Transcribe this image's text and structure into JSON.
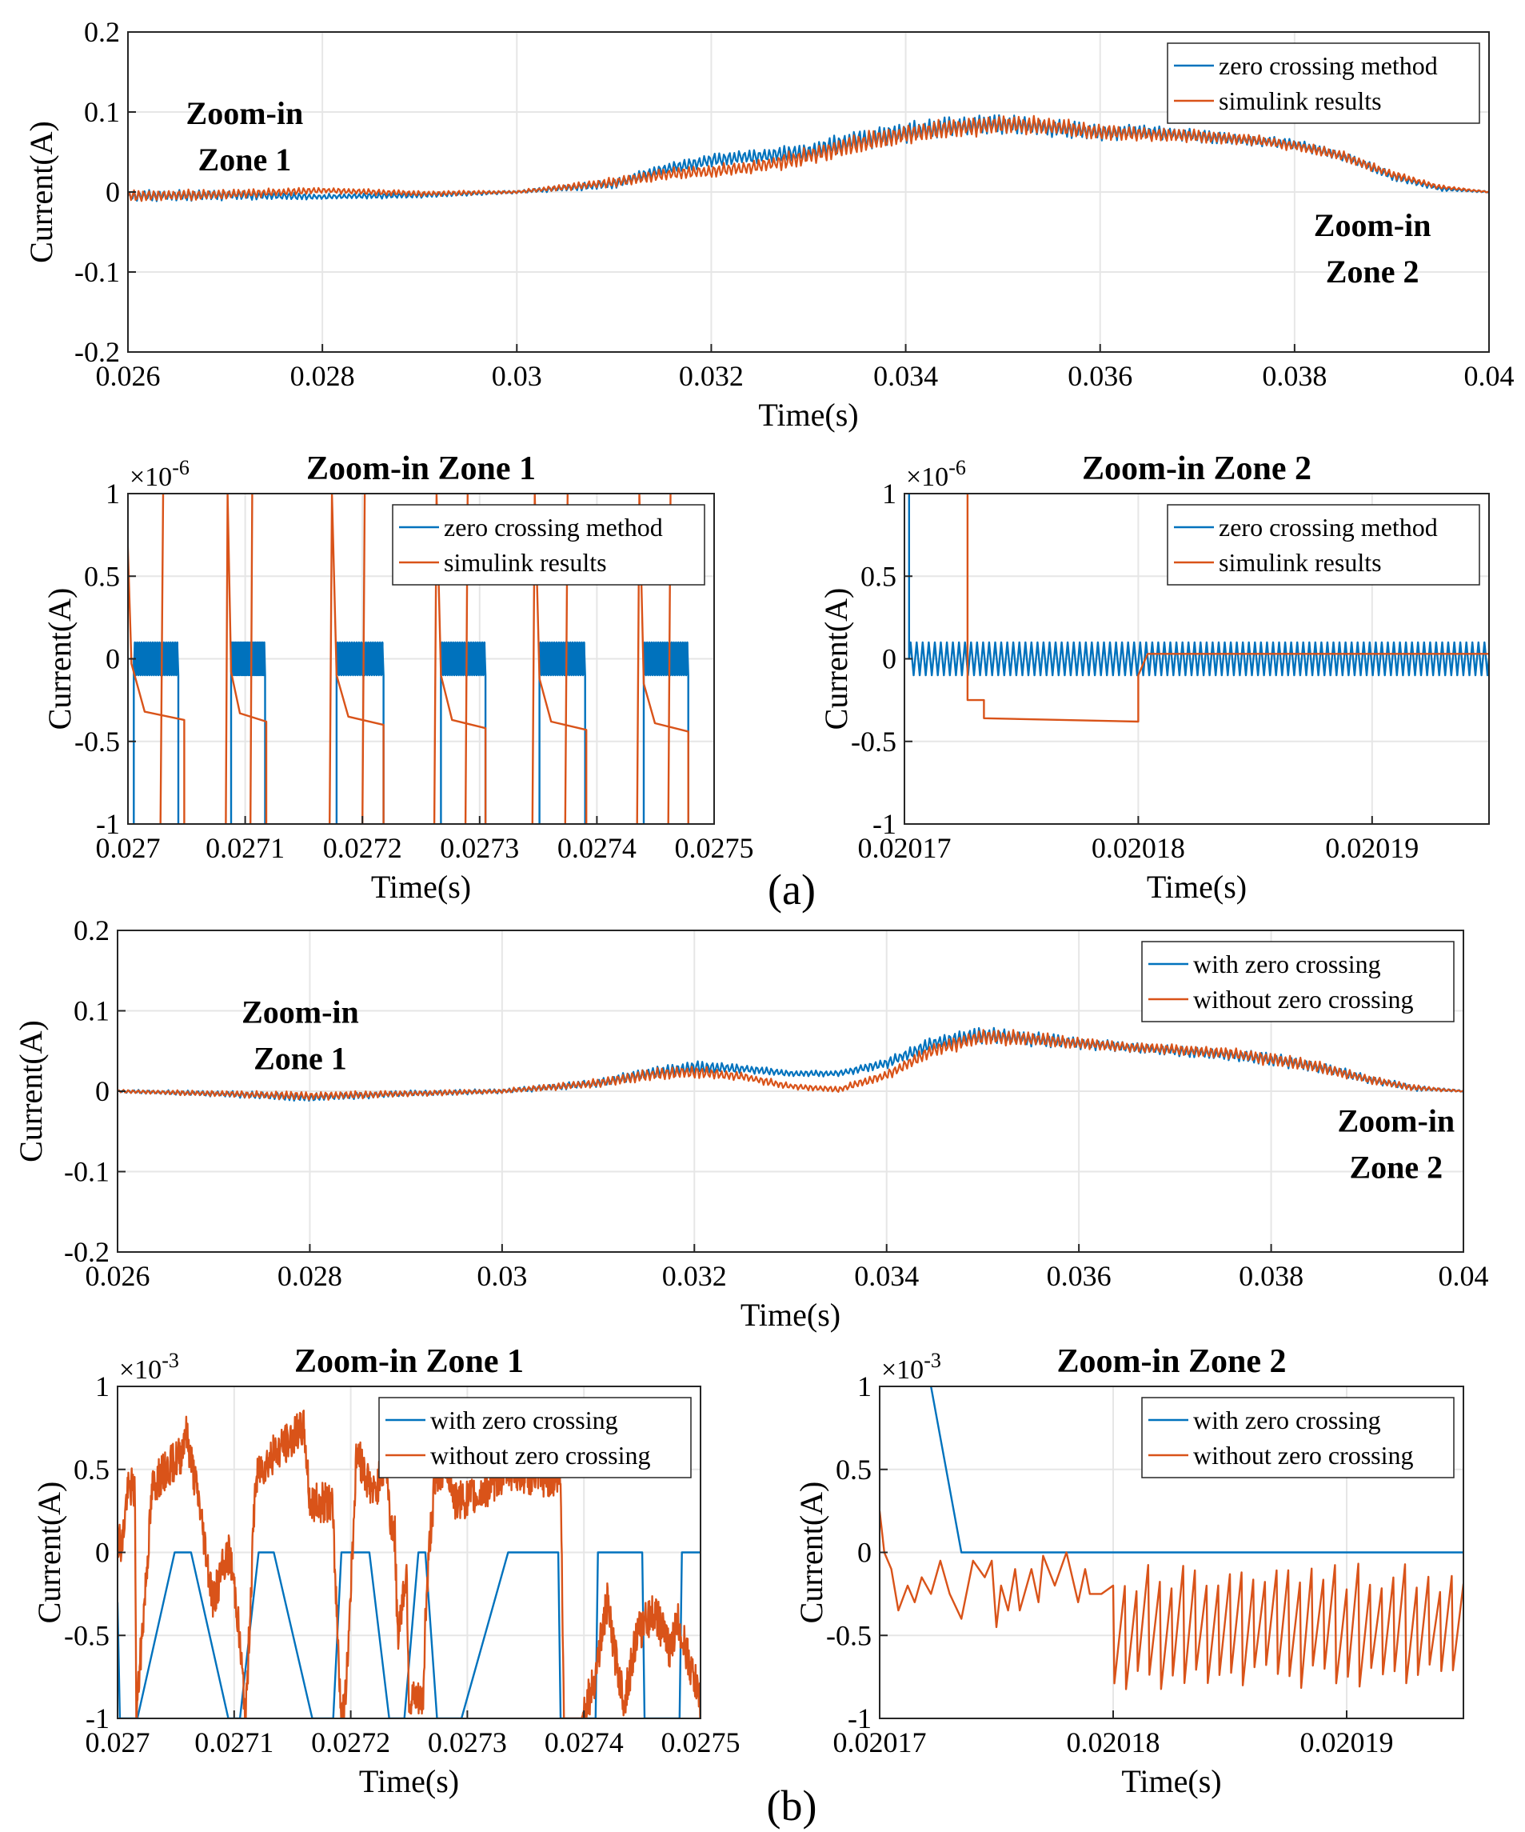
{
  "figure": {
    "caption_a": "(a)",
    "caption_b": "(b)"
  },
  "colors": {
    "blue": "#0072BD",
    "orange": "#D95319",
    "grid": "#e6e6e6"
  },
  "chart_data": [
    {
      "id": "a_main",
      "type": "line",
      "title": "",
      "xlabel": "Time(s)",
      "ylabel": "Current(A)",
      "xlim": [
        0.026,
        0.04
      ],
      "ylim": [
        -0.2,
        0.2
      ],
      "xticks": [
        0.026,
        0.028,
        0.03,
        0.032,
        0.034,
        0.036,
        0.038,
        0.04
      ],
      "xtick_labels": [
        "0.026",
        "0.028",
        "0.03",
        "0.032",
        "0.034",
        "0.036",
        "0.038",
        "0.04"
      ],
      "yticks": [
        -0.2,
        -0.1,
        0,
        0.1,
        0.2
      ],
      "ytick_labels": [
        "-0.2",
        "-0.1",
        "0",
        "0.1",
        "0.2"
      ],
      "grid": true,
      "legend_position": "top-right",
      "annotations": [
        {
          "lines": [
            "Zoom-in",
            "Zone 1"
          ],
          "x": 0.0272,
          "y": 0.085
        },
        {
          "lines": [
            "Zoom-in",
            "Zone 2"
          ],
          "x": 0.0388,
          "y": -0.055
        }
      ],
      "series": [
        {
          "name": "zero crossing method",
          "color": "#0072BD",
          "x": [
            0.026,
            0.027,
            0.028,
            0.029,
            0.03,
            0.031,
            0.0315,
            0.032,
            0.0325,
            0.033,
            0.0335,
            0.034,
            0.0345,
            0.035,
            0.0355,
            0.036,
            0.0365,
            0.037,
            0.0375,
            0.038,
            0.0385,
            0.039,
            0.0395,
            0.04
          ],
          "y": [
            -0.005,
            -0.004,
            -0.006,
            -0.004,
            0.0,
            0.01,
            0.028,
            0.04,
            0.045,
            0.05,
            0.065,
            0.075,
            0.082,
            0.085,
            0.08,
            0.075,
            0.075,
            0.07,
            0.065,
            0.06,
            0.045,
            0.02,
            0.004,
            0.0
          ],
          "ripple": [
            0.008,
            0.007,
            0.004,
            0.004,
            0.002,
            0.007,
            0.008,
            0.009,
            0.01,
            0.012,
            0.014,
            0.014,
            0.014,
            0.013,
            0.012,
            0.011,
            0.01,
            0.009,
            0.008,
            0.007,
            0.007,
            0.006,
            0.003,
            0.001
          ]
        },
        {
          "name": "simulink results",
          "color": "#D95319",
          "x": [
            0.026,
            0.027,
            0.028,
            0.029,
            0.03,
            0.031,
            0.0315,
            0.032,
            0.0325,
            0.033,
            0.0335,
            0.034,
            0.0345,
            0.035,
            0.0355,
            0.036,
            0.0365,
            0.037,
            0.0375,
            0.038,
            0.0385,
            0.039,
            0.0395,
            0.04
          ],
          "y": [
            -0.005,
            -0.003,
            0.002,
            -0.002,
            0.0,
            0.012,
            0.022,
            0.026,
            0.032,
            0.045,
            0.06,
            0.072,
            0.08,
            0.085,
            0.082,
            0.075,
            0.072,
            0.07,
            0.066,
            0.058,
            0.045,
            0.022,
            0.006,
            0.0
          ],
          "ripple": [
            0.008,
            0.007,
            0.004,
            0.004,
            0.002,
            0.007,
            0.008,
            0.009,
            0.01,
            0.012,
            0.014,
            0.014,
            0.014,
            0.013,
            0.012,
            0.011,
            0.01,
            0.009,
            0.008,
            0.007,
            0.007,
            0.006,
            0.003,
            0.001
          ]
        }
      ]
    },
    {
      "id": "a_z1",
      "type": "line",
      "title": "Zoom-in Zone 1",
      "xlabel": "Time(s)",
      "ylabel": "Current(A)",
      "y_multiplier": "×10",
      "y_exponent": "-6",
      "xlim": [
        0.027,
        0.0275
      ],
      "ylim": [
        -1,
        1
      ],
      "xticks": [
        0.027,
        0.0271,
        0.0272,
        0.0273,
        0.0274,
        0.0275
      ],
      "xtick_labels": [
        "0.027",
        "0.0271",
        "0.0272",
        "0.0273",
        "0.0274",
        "0.0275"
      ],
      "yticks": [
        -1,
        -0.5,
        0,
        0.5,
        1
      ],
      "ytick_labels": [
        "-1",
        "-0.5",
        "0",
        "0.5",
        "1"
      ],
      "grid": true,
      "legend_position": "top-right",
      "series": [
        {
          "name": "zero crossing method",
          "color": "#0072BD",
          "bursts": [
            [
              0.027005,
              0.027043
            ],
            [
              0.027088,
              0.027117
            ],
            [
              0.027178,
              0.027218
            ],
            [
              0.027267,
              0.027305
            ],
            [
              0.027351,
              0.02739
            ],
            [
              0.02744,
              0.027478
            ]
          ],
          "burst_amplitude": 0.1
        },
        {
          "name": "simulink results",
          "color": "#D95319",
          "events": [
            {
              "x": 0.027003,
              "width": 4.5e-05,
              "peak": 1.0,
              "top": -0.03,
              "tail": -0.37
            },
            {
              "x": 0.027088,
              "width": 3e-05,
              "peak": 1.0,
              "top": -0.08,
              "tail": -0.38
            },
            {
              "x": 0.027178,
              "width": 4e-05,
              "peak": 1.0,
              "top": -0.1,
              "tail": -0.4
            },
            {
              "x": 0.027267,
              "width": 3.8e-05,
              "peak": 1.0,
              "top": -0.1,
              "tail": -0.42
            },
            {
              "x": 0.027351,
              "width": 4e-05,
              "peak": 1.0,
              "top": -0.12,
              "tail": -0.43
            },
            {
              "x": 0.02744,
              "width": 3.8e-05,
              "peak": 1.0,
              "top": -0.15,
              "tail": -0.44
            }
          ]
        }
      ]
    },
    {
      "id": "a_z2",
      "type": "line",
      "title": "Zoom-in Zone 2",
      "xlabel": "Time(s)",
      "ylabel": "Current(A)",
      "y_multiplier": "×10",
      "y_exponent": "-6",
      "xlim": [
        0.02017,
        0.020195
      ],
      "ylim": [
        -1,
        1
      ],
      "xticks": [
        0.02017,
        0.02018,
        0.02019
      ],
      "xtick_labels": [
        "0.02017",
        "0.02018",
        "0.02019"
      ],
      "yticks": [
        -1,
        -0.5,
        0,
        0.5,
        1
      ],
      "ytick_labels": [
        "-1",
        "-0.5",
        "0",
        "0.5",
        "1"
      ],
      "grid": true,
      "legend_position": "top-right",
      "series": [
        {
          "name": "zero crossing method",
          "color": "#0072BD",
          "start": 0.0201702,
          "amplitude": 0.1,
          "cycles": 48
        },
        {
          "name": "simulink results",
          "color": "#D95319",
          "x": [
            0.0201727,
            0.0201727,
            0.0201734,
            0.0201734,
            0.02018,
            0.02018,
            0.0201804,
            0.020195
          ],
          "y": [
            1.0,
            -0.25,
            -0.25,
            -0.36,
            -0.38,
            -0.1,
            0.03,
            0.03
          ]
        }
      ]
    },
    {
      "id": "b_main",
      "type": "line",
      "title": "",
      "xlabel": "Time(s)",
      "ylabel": "Current(A)",
      "xlim": [
        0.026,
        0.04
      ],
      "ylim": [
        -0.2,
        0.2
      ],
      "xticks": [
        0.026,
        0.028,
        0.03,
        0.032,
        0.034,
        0.036,
        0.038,
        0.04
      ],
      "xtick_labels": [
        "0.026",
        "0.028",
        "0.03",
        "0.032",
        "0.034",
        "0.036",
        "0.038",
        "0.04"
      ],
      "yticks": [
        -0.2,
        -0.1,
        0,
        0.1,
        0.2
      ],
      "ytick_labels": [
        "-0.2",
        "-0.1",
        "0",
        "0.1",
        "0.2"
      ],
      "grid": true,
      "legend_position": "top-right",
      "annotations": [
        {
          "lines": [
            "Zoom-in",
            "Zone 1"
          ],
          "x": 0.0279,
          "y": 0.085
        },
        {
          "lines": [
            "Zoom-in",
            "Zone 2"
          ],
          "x": 0.0393,
          "y": -0.05
        }
      ],
      "series": [
        {
          "name": "with zero crossing",
          "color": "#0072BD",
          "x": [
            0.026,
            0.027,
            0.028,
            0.029,
            0.03,
            0.031,
            0.0315,
            0.032,
            0.0325,
            0.033,
            0.0335,
            0.034,
            0.0345,
            0.035,
            0.0355,
            0.036,
            0.0365,
            0.037,
            0.0375,
            0.038,
            0.0385,
            0.039,
            0.0395,
            0.04
          ],
          "y": [
            0.0,
            -0.003,
            -0.008,
            -0.003,
            0.0,
            0.01,
            0.022,
            0.03,
            0.028,
            0.022,
            0.022,
            0.035,
            0.06,
            0.07,
            0.065,
            0.06,
            0.055,
            0.05,
            0.046,
            0.04,
            0.03,
            0.015,
            0.004,
            0.0
          ],
          "ripple": [
            0.002,
            0.004,
            0.006,
            0.004,
            0.003,
            0.006,
            0.008,
            0.009,
            0.006,
            0.004,
            0.004,
            0.007,
            0.01,
            0.011,
            0.01,
            0.008,
            0.007,
            0.007,
            0.008,
            0.009,
            0.008,
            0.006,
            0.004,
            0.001
          ]
        },
        {
          "name": "without zero crossing",
          "color": "#D95319",
          "x": [
            0.026,
            0.027,
            0.028,
            0.029,
            0.03,
            0.031,
            0.0315,
            0.032,
            0.0325,
            0.033,
            0.0335,
            0.034,
            0.0345,
            0.035,
            0.0355,
            0.036,
            0.0365,
            0.037,
            0.0375,
            0.038,
            0.0385,
            0.039,
            0.0395,
            0.04
          ],
          "y": [
            0.0,
            -0.003,
            -0.006,
            -0.003,
            0.0,
            0.01,
            0.02,
            0.024,
            0.018,
            0.006,
            0.002,
            0.02,
            0.052,
            0.068,
            0.065,
            0.06,
            0.055,
            0.052,
            0.048,
            0.04,
            0.03,
            0.015,
            0.004,
            0.0
          ],
          "ripple": [
            0.002,
            0.004,
            0.006,
            0.004,
            0.003,
            0.006,
            0.008,
            0.009,
            0.006,
            0.004,
            0.004,
            0.007,
            0.01,
            0.011,
            0.01,
            0.008,
            0.007,
            0.007,
            0.008,
            0.009,
            0.008,
            0.006,
            0.004,
            0.001
          ]
        }
      ]
    },
    {
      "id": "b_z1",
      "type": "line",
      "title": "Zoom-in Zone 1",
      "xlabel": "Time(s)",
      "ylabel": "Current(A)",
      "y_multiplier": "×10",
      "y_exponent": "-3",
      "xlim": [
        0.027,
        0.0275
      ],
      "ylim": [
        -1,
        1
      ],
      "xticks": [
        0.027,
        0.0271,
        0.0272,
        0.0273,
        0.0274,
        0.0275
      ],
      "xtick_labels": [
        "0.027",
        "0.0271",
        "0.0272",
        "0.0273",
        "0.0274",
        "0.0275"
      ],
      "yticks": [
        -1,
        -0.5,
        0,
        0.5,
        1
      ],
      "ytick_labels": [
        "-1",
        "-0.5",
        "0",
        "0.5",
        "1"
      ],
      "grid": true,
      "legend_position": "top-right",
      "series": [
        {
          "name": "with zero crossing",
          "color": "#0072BD",
          "x": [
            0.027,
            0.027002,
            0.027017,
            0.027049,
            0.027063,
            0.027095,
            0.027105,
            0.027121,
            0.027134,
            0.027167,
            0.027185,
            0.027192,
            0.027216,
            0.027233,
            0.027246,
            0.027258,
            0.027264,
            0.027274,
            0.027295,
            0.027335,
            0.027378,
            0.02738,
            0.02741,
            0.027412,
            0.02745,
            0.027452,
            0.027482,
            0.027484,
            0.0275
          ],
          "y": [
            -0.3,
            -1.0,
            -1.0,
            0.0,
            0.0,
            -1.0,
            -1.0,
            0.0,
            0.0,
            -1.0,
            -1.0,
            0.0,
            0.0,
            -1.0,
            -1.0,
            0.0,
            0.0,
            -1.0,
            -1.0,
            0.0,
            0.0,
            -1.0,
            -1.0,
            0.0,
            0.0,
            -1.0,
            -1.0,
            0.0,
            0.0
          ]
        },
        {
          "name": "without zero crossing",
          "color": "#D95319",
          "x": [
            0.027,
            0.027004,
            0.027008,
            0.027012,
            0.027015,
            0.027016,
            0.02703,
            0.027055,
            0.027058,
            0.02707,
            0.027075,
            0.027082,
            0.02709,
            0.027096,
            0.027102,
            0.02711,
            0.027118,
            0.027122,
            0.027135,
            0.02716,
            0.027165,
            0.027184,
            0.027192,
            0.027196,
            0.027205,
            0.02722,
            0.02723,
            0.027234,
            0.027238,
            0.02724,
            0.027248,
            0.02725,
            0.027262,
            0.027264,
            0.027268,
            0.027272,
            0.027275,
            0.027282,
            0.02729,
            0.02731,
            0.027335,
            0.02736,
            0.02738,
            0.027383,
            0.027386,
            0.027388,
            0.02739,
            0.027392,
            0.027398,
            0.027408,
            0.027415,
            0.02742,
            0.027426,
            0.027435,
            0.027445,
            0.02746,
            0.027475,
            0.02748,
            0.0275
          ],
          "y": [
            0.1,
            0.05,
            0.35,
            0.4,
            0.35,
            -1.0,
            0.4,
            0.6,
            0.75,
            0.3,
            0.05,
            -0.3,
            -0.1,
            0.0,
            -0.3,
            -1.0,
            0.4,
            0.5,
            0.6,
            0.75,
            0.3,
            0.3,
            -1.0,
            -0.85,
            0.6,
            0.35,
            0.55,
            0.2,
            0.1,
            -0.5,
            -0.1,
            -0.9,
            -0.9,
            -0.4,
            0.1,
            0.4,
            0.45,
            0.55,
            0.3,
            0.35,
            0.5,
            0.45,
            0.45,
            -1.0,
            -1.0,
            -1.0,
            -1.0,
            -1.0,
            -1.0,
            -0.8,
            -0.5,
            -0.3,
            -0.6,
            -0.9,
            -0.5,
            -0.35,
            -0.6,
            -0.4,
            -0.9
          ],
          "ripple": 0.12
        }
      ]
    },
    {
      "id": "b_z2",
      "type": "line",
      "title": "Zoom-in Zone 2",
      "xlabel": "Time(s)",
      "ylabel": "Current(A)",
      "y_multiplier": "×10",
      "y_exponent": "-3",
      "xlim": [
        0.02017,
        0.020195
      ],
      "ylim": [
        -1,
        1
      ],
      "xticks": [
        0.02017,
        0.02018,
        0.02019
      ],
      "xtick_labels": [
        "0.02017",
        "0.02018",
        "0.02019"
      ],
      "yticks": [
        -1,
        -0.5,
        0,
        0.5,
        1
      ],
      "ytick_labels": [
        "-1",
        "-0.5",
        "0",
        "0.5",
        "1"
      ],
      "grid": true,
      "legend_position": "top-right",
      "series": [
        {
          "name": "with zero crossing",
          "color": "#0072BD",
          "x": [
            0.0201722,
            0.0201735,
            0.020195
          ],
          "y": [
            1.0,
            0.0,
            0.0
          ]
        },
        {
          "name": "without zero crossing",
          "color": "#D95319",
          "x": [
            0.02017,
            0.0201702,
            0.0201705,
            0.0201708,
            0.0201712,
            0.0201715,
            0.0201718,
            0.0201722,
            0.0201726,
            0.020173,
            0.0201735,
            0.020174,
            0.0201745,
            0.0201748,
            0.020175,
            0.0201752,
            0.0201755,
            0.0201758,
            0.020176,
            0.0201765,
            0.0201768,
            0.020177,
            0.0201775,
            0.020178,
            0.0201785,
            0.0201788,
            0.020179,
            0.0201795,
            0.02018
          ],
          "y": [
            0.25,
            0.0,
            -0.1,
            -0.35,
            -0.2,
            -0.3,
            -0.15,
            -0.25,
            -0.05,
            -0.25,
            -0.4,
            -0.05,
            -0.15,
            -0.05,
            -0.45,
            -0.2,
            -0.35,
            -0.1,
            -0.35,
            -0.1,
            -0.3,
            -0.02,
            -0.2,
            0.0,
            -0.3,
            -0.1,
            -0.25,
            -0.25,
            -0.2
          ],
          "saw": {
            "start": 0.02018,
            "end": 0.020195,
            "teeth": 30,
            "low": -0.75,
            "high": -0.15
          }
        }
      ]
    }
  ]
}
